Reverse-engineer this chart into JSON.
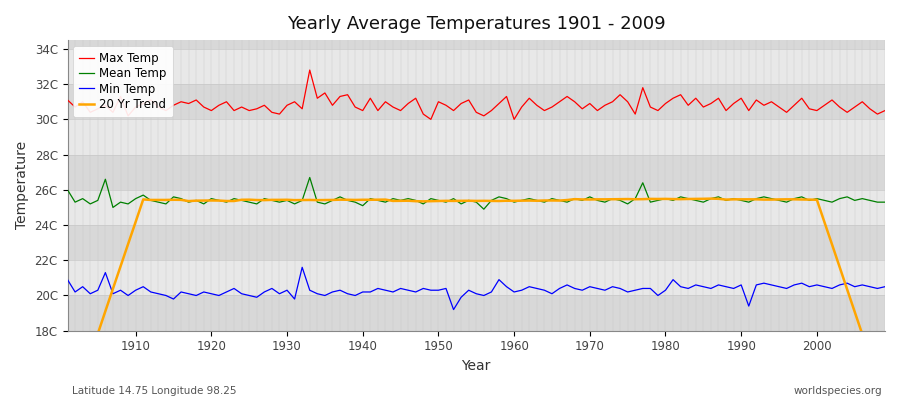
{
  "title": "Yearly Average Temperatures 1901 - 2009",
  "xlabel": "Year",
  "ylabel": "Temperature",
  "xlim": [
    1901,
    2009
  ],
  "ylim": [
    18,
    34.5
  ],
  "yticks": [
    18,
    20,
    22,
    24,
    26,
    28,
    30,
    32,
    34
  ],
  "ytick_labels": [
    "18C",
    "20C",
    "22C",
    "24C",
    "26C",
    "28C",
    "30C",
    "32C",
    "34C"
  ],
  "fig_bg_color": "#ffffff",
  "plot_bg_color": "#e0e0e0",
  "band_light": "#e8e8e8",
  "band_dark": "#d8d8d8",
  "grid_color": "#c8c8c8",
  "legend_labels": [
    "Max Temp",
    "Mean Temp",
    "Min Temp",
    "20 Yr Trend"
  ],
  "xticks": [
    1910,
    1920,
    1930,
    1940,
    1950,
    1960,
    1970,
    1980,
    1990,
    2000
  ],
  "max_temp": [
    31.1,
    30.7,
    31.0,
    30.4,
    30.6,
    30.8,
    30.4,
    31.3,
    30.2,
    30.7,
    30.9,
    31.1,
    30.7,
    30.5,
    30.8,
    31.0,
    30.9,
    31.1,
    30.7,
    30.5,
    30.8,
    31.0,
    30.5,
    30.7,
    30.5,
    30.6,
    30.8,
    30.4,
    30.3,
    30.8,
    31.0,
    30.6,
    32.8,
    31.2,
    31.5,
    30.8,
    31.3,
    31.4,
    30.7,
    30.5,
    31.2,
    30.5,
    31.0,
    30.7,
    30.5,
    30.9,
    31.2,
    30.3,
    30.0,
    31.0,
    30.8,
    30.5,
    30.9,
    31.1,
    30.4,
    30.2,
    30.5,
    30.9,
    31.3,
    30.0,
    30.7,
    31.2,
    30.8,
    30.5,
    30.7,
    31.0,
    31.3,
    31.0,
    30.6,
    30.9,
    30.5,
    30.8,
    31.0,
    31.4,
    31.0,
    30.3,
    31.8,
    30.7,
    30.5,
    30.9,
    31.2,
    31.4,
    30.8,
    31.2,
    30.7,
    30.9,
    31.2,
    30.5,
    30.9,
    31.2,
    30.5,
    31.1,
    30.8,
    31.0,
    30.7,
    30.4,
    30.8,
    31.2,
    30.6,
    30.5,
    30.8,
    31.1,
    30.7,
    30.4,
    30.7,
    31.0,
    30.6,
    30.3,
    30.5
  ],
  "mean_temp": [
    26.0,
    25.3,
    25.5,
    25.2,
    25.4,
    26.6,
    25.0,
    25.3,
    25.2,
    25.5,
    25.7,
    25.4,
    25.3,
    25.2,
    25.6,
    25.5,
    25.3,
    25.4,
    25.2,
    25.5,
    25.4,
    25.3,
    25.5,
    25.4,
    25.3,
    25.2,
    25.5,
    25.4,
    25.3,
    25.4,
    25.2,
    25.4,
    26.7,
    25.3,
    25.2,
    25.4,
    25.6,
    25.4,
    25.3,
    25.1,
    25.5,
    25.4,
    25.3,
    25.5,
    25.4,
    25.5,
    25.4,
    25.2,
    25.5,
    25.4,
    25.3,
    25.5,
    25.2,
    25.4,
    25.3,
    24.9,
    25.4,
    25.6,
    25.5,
    25.3,
    25.4,
    25.5,
    25.4,
    25.3,
    25.5,
    25.4,
    25.3,
    25.5,
    25.4,
    25.6,
    25.4,
    25.3,
    25.5,
    25.4,
    25.2,
    25.5,
    26.4,
    25.3,
    25.4,
    25.5,
    25.4,
    25.6,
    25.5,
    25.4,
    25.3,
    25.5,
    25.6,
    25.4,
    25.5,
    25.4,
    25.3,
    25.5,
    25.6,
    25.5,
    25.4,
    25.3,
    25.5,
    25.6,
    25.4,
    25.5,
    25.4,
    25.3,
    25.5,
    25.6,
    25.4,
    25.5,
    25.4,
    25.3,
    25.3
  ],
  "min_temp": [
    20.9,
    20.2,
    20.5,
    20.1,
    20.3,
    21.3,
    20.1,
    20.3,
    20.0,
    20.3,
    20.5,
    20.2,
    20.1,
    20.0,
    19.8,
    20.2,
    20.1,
    20.0,
    20.2,
    20.1,
    20.0,
    20.2,
    20.4,
    20.1,
    20.0,
    19.9,
    20.2,
    20.4,
    20.1,
    20.3,
    19.8,
    21.6,
    20.3,
    20.1,
    20.0,
    20.2,
    20.3,
    20.1,
    20.0,
    20.2,
    20.2,
    20.4,
    20.3,
    20.2,
    20.4,
    20.3,
    20.2,
    20.4,
    20.3,
    20.3,
    20.4,
    19.2,
    19.9,
    20.3,
    20.1,
    20.0,
    20.2,
    20.9,
    20.5,
    20.2,
    20.3,
    20.5,
    20.4,
    20.3,
    20.1,
    20.4,
    20.6,
    20.4,
    20.3,
    20.5,
    20.4,
    20.3,
    20.5,
    20.4,
    20.2,
    20.3,
    20.4,
    20.4,
    20.0,
    20.3,
    20.9,
    20.5,
    20.4,
    20.6,
    20.5,
    20.4,
    20.6,
    20.5,
    20.4,
    20.6,
    19.4,
    20.6,
    20.7,
    20.6,
    20.5,
    20.4,
    20.6,
    20.7,
    20.5,
    20.6,
    20.5,
    20.4,
    20.6,
    20.7,
    20.5,
    20.6,
    20.5,
    20.4,
    20.5
  ],
  "footnote_left": "Latitude 14.75 Longitude 98.25",
  "footnote_right": "worldspecies.org"
}
